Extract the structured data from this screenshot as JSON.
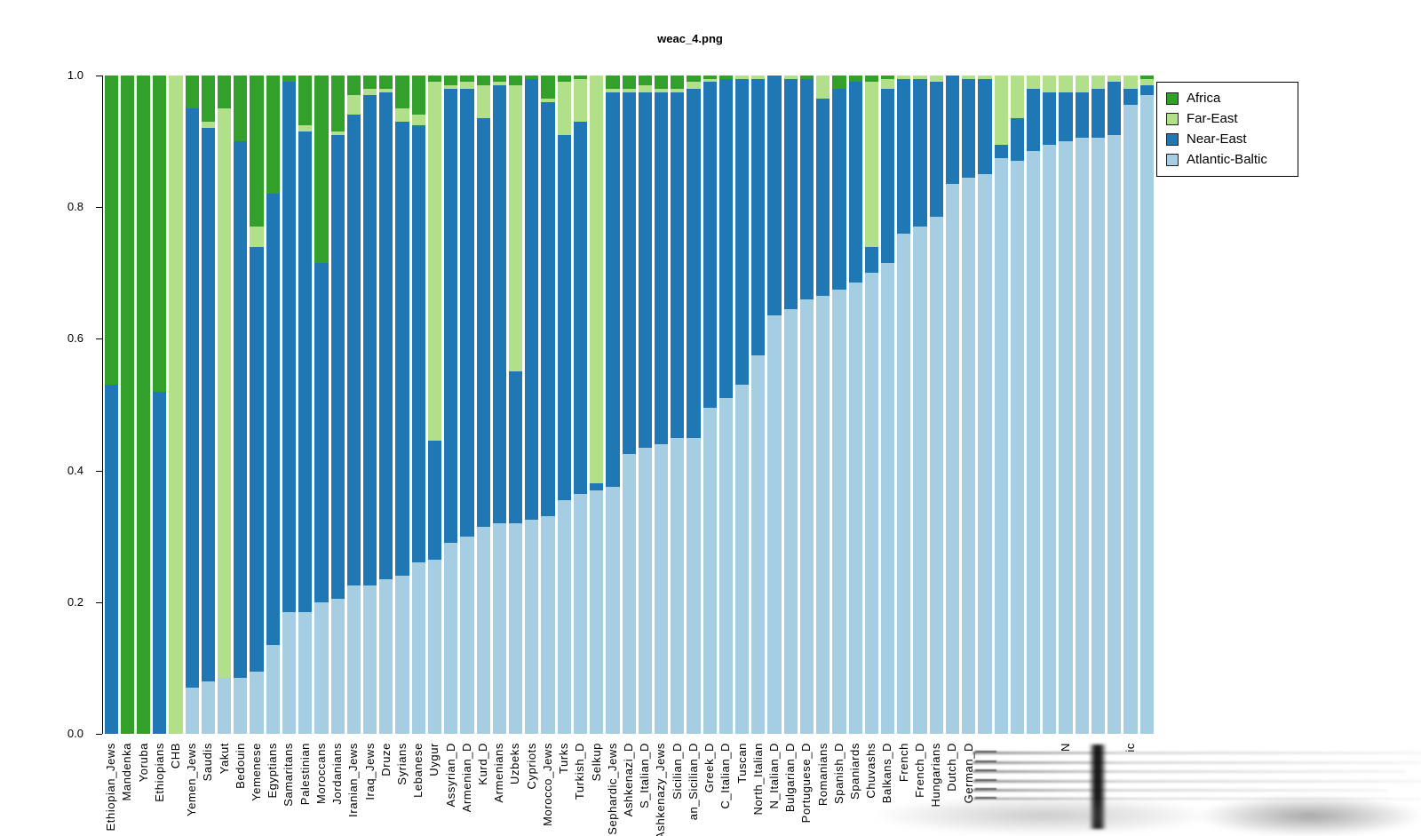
{
  "title": "weac_4.png",
  "colors": {
    "africa": "#33a02c",
    "far_east": "#b2df8a",
    "near_east": "#1f78b4",
    "atlantic_baltic": "#a6cee3",
    "background": "#ffffff",
    "axis": "#000000"
  },
  "legend": {
    "items": [
      {
        "label": "Africa",
        "color": "#33a02c"
      },
      {
        "label": "Far-East",
        "color": "#b2df8a"
      },
      {
        "label": "Near-East",
        "color": "#1f78b4"
      },
      {
        "label": "Atlantic-Baltic",
        "color": "#a6cee3"
      }
    ]
  },
  "y_axis": {
    "ticks": [
      "1.0",
      "0.8",
      "0.6",
      "0.4",
      "0.2",
      "0.0"
    ]
  },
  "chart_data": {
    "type": "bar",
    "stacked": true,
    "title": "weac_4.png",
    "xlabel": "",
    "ylabel": "",
    "ylim": [
      0,
      1
    ],
    "grid": false,
    "legend_position": "top-right",
    "legend_order": [
      "Africa",
      "Far-East",
      "Near-East",
      "Atlantic-Baltic"
    ],
    "categories": [
      "Ethiopian_Jews",
      "Mandenka",
      "Yoruba",
      "Ethiopians",
      "CHB",
      "Yemen_Jews",
      "Saudis",
      "Yakut",
      "Bedouin",
      "Yemenese",
      "Egyptians",
      "Samaritans",
      "Palestinian",
      "Moroccans",
      "Jordanians",
      "Iranian_Jews",
      "Iraq_Jews",
      "Druze",
      "Syrians",
      "Lebanese",
      "Uygur",
      "Assyrian_D",
      "Armenian_D",
      "Kurd_D",
      "Armenians",
      "Uzbeks",
      "Cypriots",
      "Morocco_Jews",
      "Turks",
      "Turkish_D",
      "Selkup",
      "Sephardic_Jews",
      "Ashkenazi_D",
      "S_Italian_D",
      "Ashkenazy_Jews",
      "Sicilian_D",
      "an_Sicilian_D",
      "Greek_D",
      "C_Italian_D",
      "Tuscan",
      "North_Italian",
      "N_Italian_D",
      "Bulgarian_D",
      "Portuguese_D",
      "Romanians",
      "Spanish_D",
      "Spaniards",
      "Chuvashs",
      "Balkans_D",
      "French",
      "French_D",
      "Hungarians",
      "Dutch_D",
      "German_D",
      "",
      "",
      "",
      "",
      "",
      "N",
      "",
      "",
      "",
      "ic",
      ""
    ],
    "series": [
      {
        "name": "Atlantic-Baltic",
        "color": "#a6cee3",
        "values": [
          0,
          0,
          0,
          0,
          0,
          0.07,
          0.08,
          0.085,
          0.085,
          0.095,
          0.135,
          0.185,
          0.185,
          0.2,
          0.205,
          0.225,
          0.225,
          0.235,
          0.24,
          0.26,
          0.265,
          0.29,
          0.3,
          0.315,
          0.32,
          0.32,
          0.325,
          0.33,
          0.355,
          0.365,
          0.37,
          0.375,
          0.425,
          0.435,
          0.44,
          0.45,
          0.45,
          0.495,
          0.51,
          0.53,
          0.575,
          0.635,
          0.645,
          0.66,
          0.665,
          0.675,
          0.685,
          0.7,
          0.715,
          0.76,
          0.77,
          0.785,
          0.835,
          0.845,
          0.85,
          0.875,
          0.87,
          0.885,
          0.895,
          0.9,
          0.905,
          0.905,
          0.91,
          0.955,
          0.97
        ]
      },
      {
        "name": "Near-East",
        "color": "#1f78b4",
        "values": [
          0.53,
          0,
          0,
          0.52,
          0,
          0.88,
          0.84,
          0,
          0.815,
          0.645,
          0.685,
          0.805,
          0.73,
          0.515,
          0.705,
          0.715,
          0.745,
          0.74,
          0.69,
          0.665,
          0.18,
          0.69,
          0.68,
          0.62,
          0.665,
          0.23,
          0.67,
          0.63,
          0.555,
          0.565,
          0.01,
          0.6,
          0.55,
          0.54,
          0.535,
          0.525,
          0.53,
          0.495,
          0.485,
          0.465,
          0.42,
          0.365,
          0.35,
          0.335,
          0.3,
          0.305,
          0.305,
          0.04,
          0.265,
          0.235,
          0.225,
          0.205,
          0.165,
          0.15,
          0.145,
          0.02,
          0.065,
          0.095,
          0.08,
          0.075,
          0.07,
          0.075,
          0.08,
          0.025,
          0.015
        ]
      },
      {
        "name": "Far-East",
        "color": "#b2df8a",
        "values": [
          0,
          0,
          0,
          0,
          1.0,
          0,
          0.01,
          0.865,
          0,
          0.03,
          0,
          0,
          0.01,
          0,
          0.005,
          0.03,
          0.01,
          0.005,
          0.02,
          0.015,
          0.545,
          0.005,
          0.01,
          0.05,
          0.005,
          0.435,
          0,
          0.005,
          0.08,
          0.065,
          0.62,
          0.005,
          0.005,
          0.01,
          0.005,
          0.005,
          0.01,
          0.005,
          0,
          0.005,
          0.005,
          0,
          0.005,
          0,
          0.035,
          0,
          0,
          0.25,
          0.015,
          0.005,
          0.005,
          0.01,
          0,
          0.005,
          0.005,
          0.105,
          0.065,
          0.02,
          0.025,
          0.025,
          0.025,
          0.02,
          0.01,
          0.02,
          0.01
        ]
      },
      {
        "name": "Africa",
        "color": "#33a02c",
        "values": [
          0.47,
          1.0,
          1.0,
          0.48,
          0,
          0.05,
          0.07,
          0.05,
          0.1,
          0.23,
          0.18,
          0.01,
          0.075,
          0.285,
          0.085,
          0.03,
          0.02,
          0.02,
          0.05,
          0.06,
          0.01,
          0.015,
          0.01,
          0.015,
          0.01,
          0.015,
          0.005,
          0.035,
          0.01,
          0.005,
          0,
          0.02,
          0.02,
          0.015,
          0.02,
          0.02,
          0.01,
          0.005,
          0.005,
          0,
          0,
          0,
          0,
          0.005,
          0,
          0.02,
          0.01,
          0.01,
          0.005,
          0,
          0,
          0,
          0,
          0,
          0,
          0,
          0,
          0,
          0,
          0,
          0,
          0,
          0,
          0,
          0.005
        ]
      }
    ]
  }
}
